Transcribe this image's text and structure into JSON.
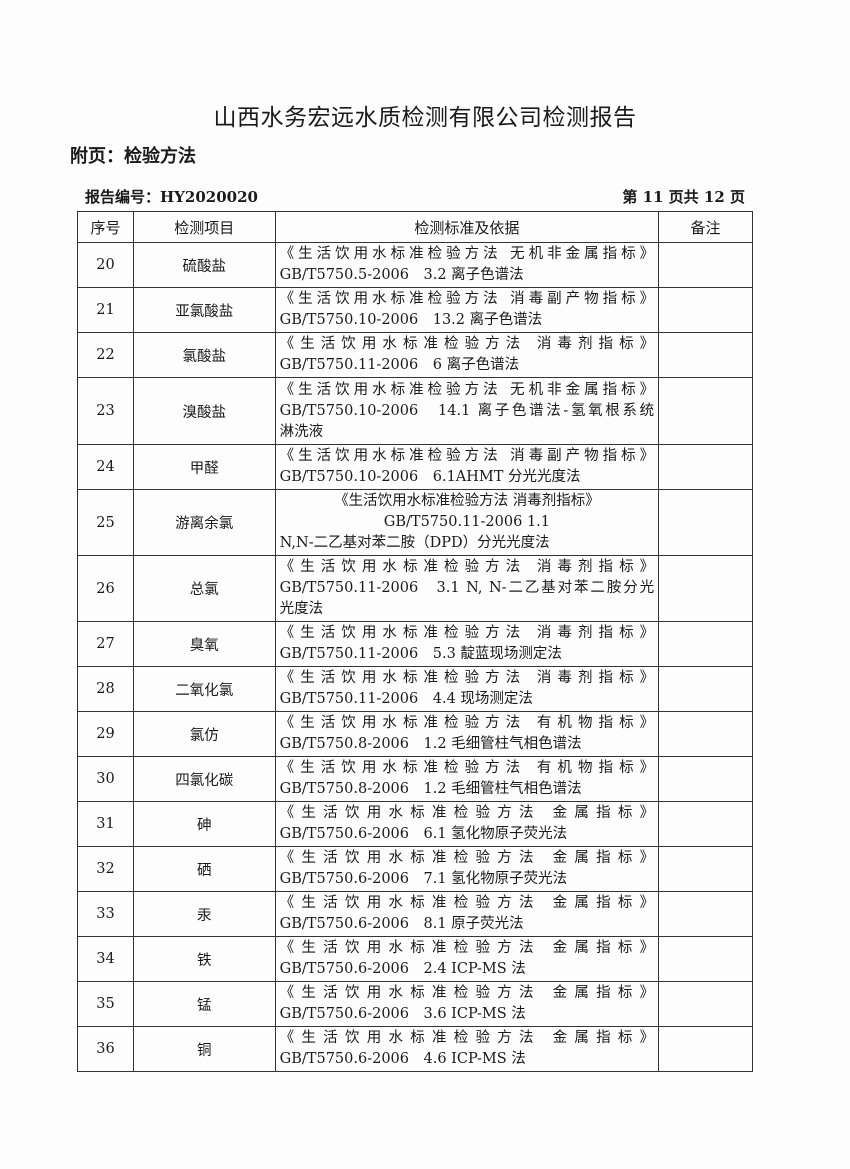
{
  "title": "山西水务宏远水质检测有限公司检测报告",
  "subtitle": "附页：检验方法",
  "report_no": "报告编号：HY2020020",
  "page_info": "第 11 页共 12 页",
  "headers": [
    "序号",
    "检测项目",
    "检测标准及依据",
    "备注"
  ],
  "rows": [
    {
      "no": "20",
      "item": "硫酸盐",
      "lines": [
        "《生活饮用水标准检验方法 无机非金属指标》",
        "GB/T5750.5-2006　3.2 离子色谱法"
      ],
      "note": ""
    },
    {
      "no": "21",
      "item": "亚氯酸盐",
      "lines": [
        "《生活饮用水标准检验方法 消毒副产物指标》",
        "GB/T5750.10-2006　13.2 离子色谱法"
      ],
      "note": ""
    },
    {
      "no": "22",
      "item": "氯酸盐",
      "lines": [
        "《生活饮用水标准检验方法 消毒剂指标》",
        "GB/T5750.11-2006　6 离子色谱法"
      ],
      "note": ""
    },
    {
      "no": "23",
      "item": "溴酸盐",
      "lines": [
        "《生活饮用水标准检验方法 无机非金属指标》",
        "GB/T5750.10-2006　14.1 离子色谱法-氢氧根系统",
        "淋洗液"
      ],
      "note": ""
    },
    {
      "no": "24",
      "item": "甲醛",
      "lines": [
        "《生活饮用水标准检验方法 消毒副产物指标》",
        "GB/T5750.10-2006　6.1AHMT 分光光度法"
      ],
      "note": ""
    },
    {
      "no": "25",
      "item": "游离余氯",
      "lines": [
        "《生活饮用水标准检验方法 消毒剂指标》",
        "GB/T5750.11-2006 1.1",
        "N,N-二乙基对苯二胺（DPD）分光光度法"
      ],
      "note": "",
      "centered": true
    },
    {
      "no": "26",
      "item": "总氯",
      "lines": [
        "《生活饮用水标准检验方法 消毒剂指标》",
        "GB/T5750.11-2006　3.1 N, N-二乙基对苯二胺分光",
        "光度法"
      ],
      "note": ""
    },
    {
      "no": "27",
      "item": "臭氧",
      "lines": [
        "《生活饮用水标准检验方法 消毒剂指标》",
        "GB/T5750.11-2006　5.3 靛蓝现场测定法"
      ],
      "note": ""
    },
    {
      "no": "28",
      "item": "二氧化氯",
      "lines": [
        "《生活饮用水标准检验方法 消毒剂指标》",
        "GB/T5750.11-2006　4.4 现场测定法"
      ],
      "note": ""
    },
    {
      "no": "29",
      "item": "氯仿",
      "lines": [
        "《生活饮用水标准检验方法 有机物指标》",
        "GB/T5750.8-2006　1.2 毛细管柱气相色谱法"
      ],
      "note": ""
    },
    {
      "no": "30",
      "item": "四氯化碳",
      "lines": [
        "《生活饮用水标准检验方法 有机物指标》",
        "GB/T5750.8-2006　1.2 毛细管柱气相色谱法"
      ],
      "note": ""
    },
    {
      "no": "31",
      "item": "砷",
      "lines": [
        "《生活饮用水标准检验方法 金属指标》",
        "GB/T5750.6-2006　6.1 氢化物原子荧光法"
      ],
      "note": ""
    },
    {
      "no": "32",
      "item": "硒",
      "lines": [
        "《生活饮用水标准检验方法 金属指标》",
        "GB/T5750.6-2006　7.1 氢化物原子荧光法"
      ],
      "note": ""
    },
    {
      "no": "33",
      "item": "汞",
      "lines": [
        "《生活饮用水标准检验方法 金属指标》",
        "GB/T5750.6-2006　8.1 原子荧光法"
      ],
      "note": ""
    },
    {
      "no": "34",
      "item": "铁",
      "lines": [
        "《生活饮用水标准检验方法 金属指标》",
        "GB/T5750.6-2006　2.4 ICP-MS 法"
      ],
      "note": ""
    },
    {
      "no": "35",
      "item": "锰",
      "lines": [
        "《生活饮用水标准检验方法 金属指标》",
        "GB/T5750.6-2006　3.6 ICP-MS 法"
      ],
      "note": ""
    },
    {
      "no": "36",
      "item": "铜",
      "lines": [
        "《生活饮用水标准检验方法 金属指标》",
        "GB/T5750.6-2006　4.6 ICP-MS 法"
      ],
      "note": ""
    }
  ]
}
